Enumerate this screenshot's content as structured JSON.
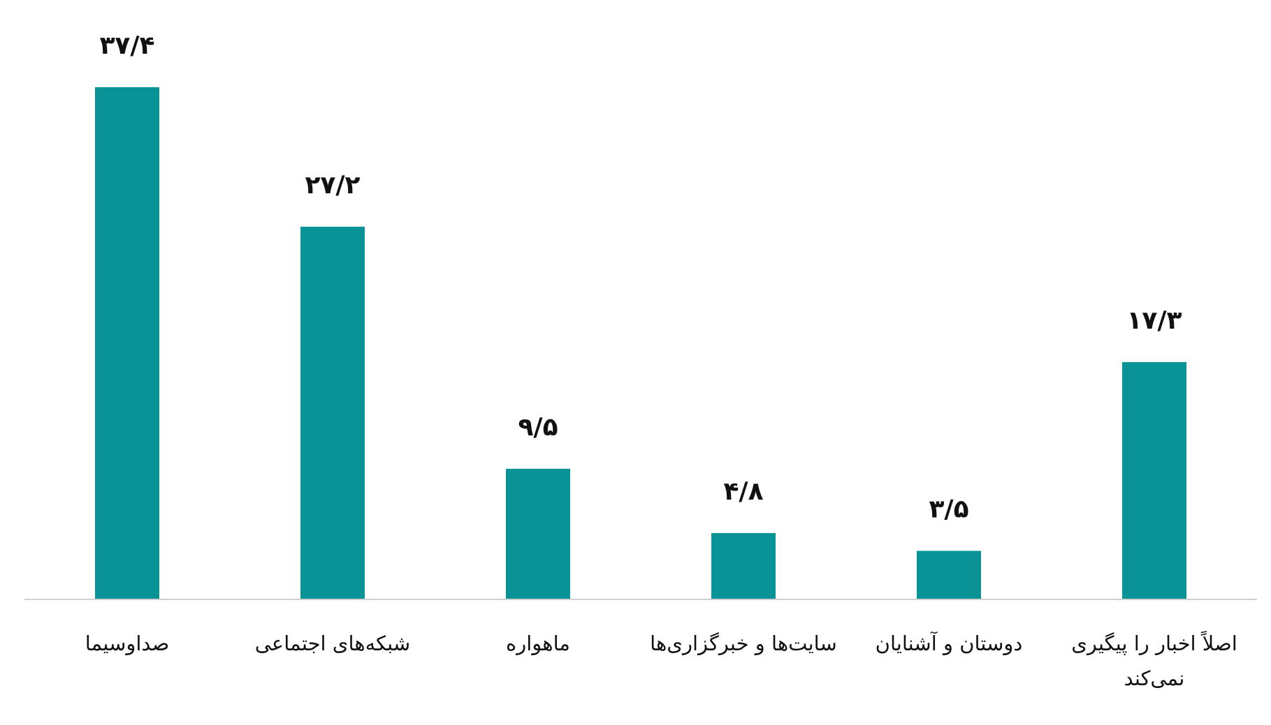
{
  "chart_data": {
    "type": "bar",
    "categories": [
      "صداوسیما",
      "شبکه‌های اجتماعی",
      "ماهواره",
      "سایت‌ها و خبرگزاری‌ها",
      "دوستان و آشنایان",
      "اصلاً اخبار را پیگیری نمی‌کند"
    ],
    "values": [
      37.4,
      27.2,
      9.5,
      4.8,
      3.5,
      17.3
    ],
    "value_labels": [
      "۳۷/۴",
      "۲۷/۲",
      "۹/۵",
      "۴/۸",
      "۳/۵",
      "۱۷/۳"
    ],
    "color": "#0a9396",
    "ylim": [
      0,
      40
    ]
  }
}
